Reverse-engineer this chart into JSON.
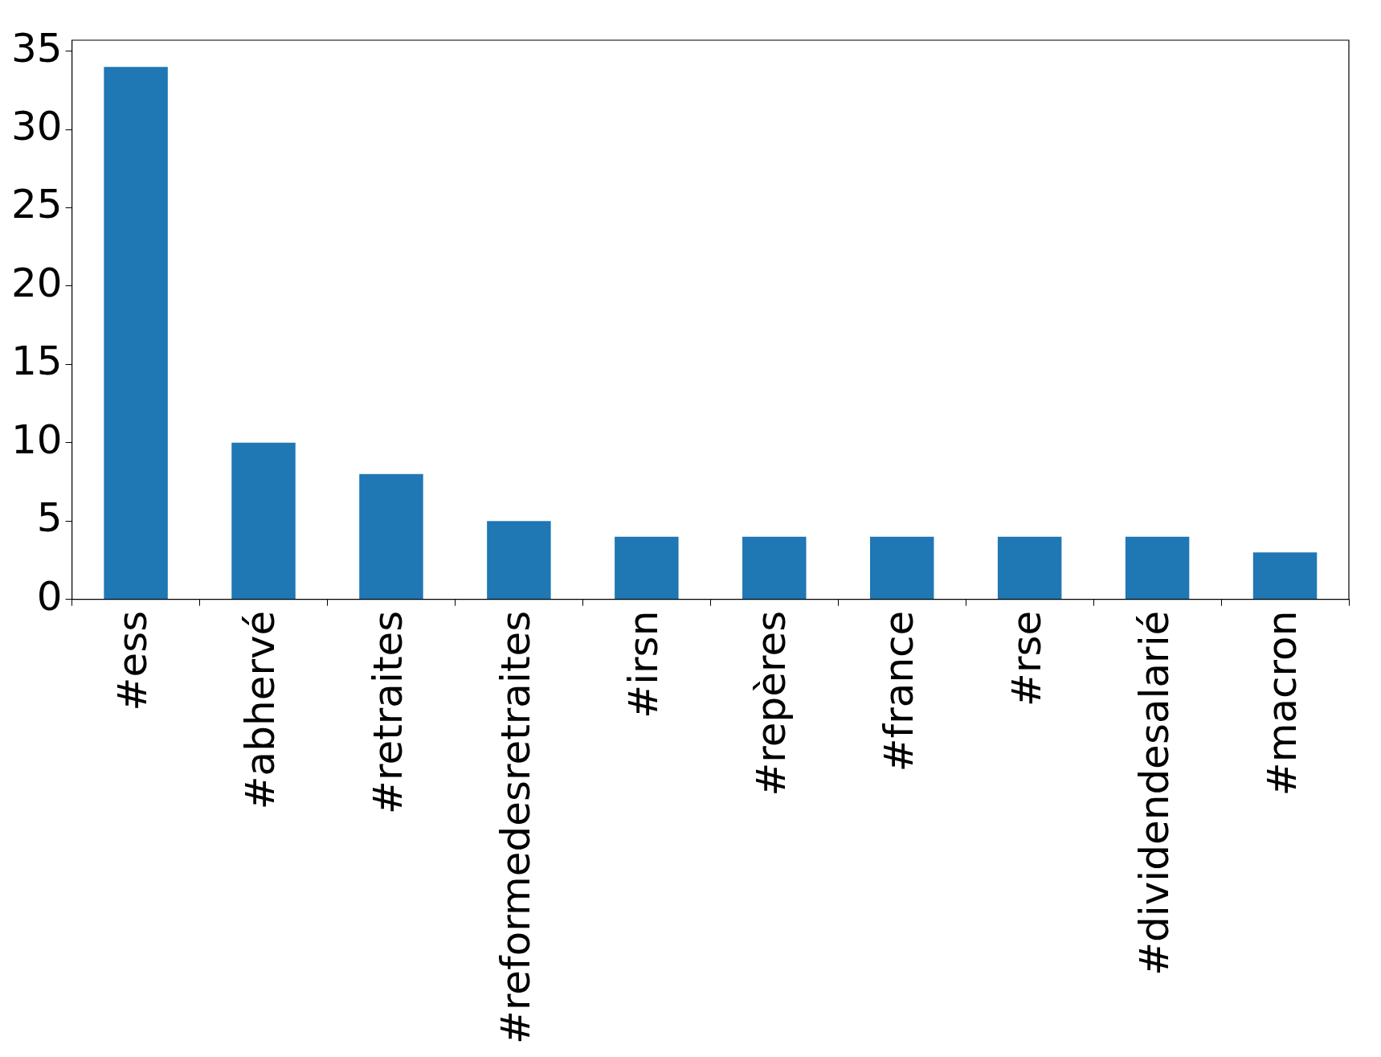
{
  "chart_data": {
    "type": "bar",
    "categories": [
      "#ess",
      "#abhervé",
      "#retraites",
      "#reformedesretraites",
      "#irsn",
      "#repères",
      "#france",
      "#rse",
      "#dividendesalarié",
      "#macron"
    ],
    "values": [
      34,
      10,
      8,
      5,
      4,
      4,
      4,
      4,
      4,
      3
    ],
    "color": "#1f77b4",
    "ylim": [
      0,
      35.7
    ],
    "yticks": [
      0,
      5,
      10,
      15,
      20,
      25,
      30,
      35
    ],
    "grid": false,
    "legend": false
  }
}
